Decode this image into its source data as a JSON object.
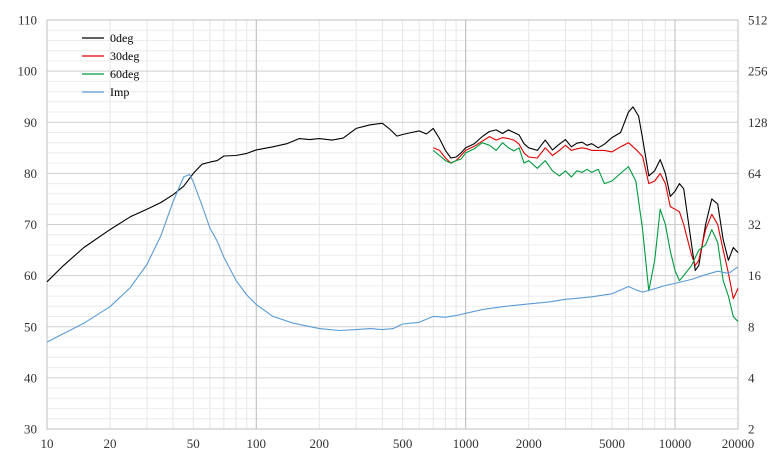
{
  "chart_data": {
    "type": "line",
    "title": "",
    "xlabel": "",
    "ylabel": "",
    "x_scale": "log",
    "xlim": [
      10,
      20000
    ],
    "ylim": [
      30,
      110
    ],
    "y2_scale": "log2",
    "y2lim": [
      2,
      512
    ],
    "grid": true,
    "legend_position": "top-left",
    "x_ticks": [
      10,
      20,
      50,
      100,
      200,
      500,
      1000,
      2000,
      5000,
      10000,
      20000
    ],
    "x_tick_labels": [
      "10",
      "20",
      "50",
      "100",
      "200",
      "500",
      "1000",
      "2000",
      "5000",
      "10000",
      "20000"
    ],
    "y_ticks": [
      30,
      40,
      50,
      60,
      70,
      80,
      90,
      100,
      110
    ],
    "y_tick_labels": [
      "30",
      "40",
      "50",
      "60",
      "70",
      "80",
      "90",
      "100",
      "110"
    ],
    "y2_ticks": [
      2,
      4,
      8,
      16,
      32,
      64,
      128,
      256,
      512
    ],
    "y2_tick_labels": [
      "2",
      "4",
      "8",
      "16",
      "32",
      "64",
      "128",
      "256",
      "512"
    ],
    "series": [
      {
        "name": "0deg",
        "color": "#000000",
        "axis": "left",
        "points": [
          [
            10,
            58.8
          ],
          [
            12,
            62
          ],
          [
            15,
            65.5
          ],
          [
            20,
            69
          ],
          [
            25,
            71.5
          ],
          [
            30,
            73
          ],
          [
            35,
            74.3
          ],
          [
            40,
            75.8
          ],
          [
            45,
            77.5
          ],
          [
            50,
            80
          ],
          [
            55,
            81.8
          ],
          [
            60,
            82.2
          ],
          [
            65,
            82.5
          ],
          [
            70,
            83.4
          ],
          [
            80,
            83.5
          ],
          [
            90,
            83.9
          ],
          [
            100,
            84.6
          ],
          [
            120,
            85.2
          ],
          [
            140,
            85.8
          ],
          [
            160,
            86.8
          ],
          [
            180,
            86.6
          ],
          [
            200,
            86.8
          ],
          [
            230,
            86.5
          ],
          [
            260,
            86.9
          ],
          [
            300,
            88.8
          ],
          [
            350,
            89.5
          ],
          [
            400,
            89.8
          ],
          [
            430,
            88.8
          ],
          [
            470,
            87.3
          ],
          [
            500,
            87.6
          ],
          [
            550,
            88
          ],
          [
            600,
            88.3
          ],
          [
            650,
            87.7
          ],
          [
            700,
            88.8
          ],
          [
            750,
            86.8
          ],
          [
            800,
            84.5
          ],
          [
            850,
            83
          ],
          [
            900,
            83.2
          ],
          [
            950,
            84
          ],
          [
            1000,
            85
          ],
          [
            1100,
            85.8
          ],
          [
            1200,
            87.2
          ],
          [
            1300,
            88.2
          ],
          [
            1400,
            88.5
          ],
          [
            1500,
            87.8
          ],
          [
            1600,
            88.5
          ],
          [
            1700,
            88
          ],
          [
            1800,
            87.5
          ],
          [
            1900,
            85.8
          ],
          [
            2000,
            85
          ],
          [
            2200,
            84.5
          ],
          [
            2400,
            86.5
          ],
          [
            2600,
            84.6
          ],
          [
            2800,
            85.7
          ],
          [
            3000,
            86.6
          ],
          [
            3200,
            85.2
          ],
          [
            3400,
            85.9
          ],
          [
            3600,
            86.1
          ],
          [
            3800,
            85.5
          ],
          [
            4000,
            85.8
          ],
          [
            4300,
            85
          ],
          [
            4600,
            85.7
          ],
          [
            5000,
            87
          ],
          [
            5500,
            88
          ],
          [
            6000,
            92
          ],
          [
            6300,
            93
          ],
          [
            6700,
            91.2
          ],
          [
            7000,
            86.8
          ],
          [
            7500,
            79.5
          ],
          [
            8000,
            80.5
          ],
          [
            8500,
            82.7
          ],
          [
            9000,
            80
          ],
          [
            9500,
            75.5
          ],
          [
            10000,
            76.5
          ],
          [
            10500,
            78
          ],
          [
            11000,
            77
          ],
          [
            12000,
            66
          ],
          [
            12500,
            61
          ],
          [
            13000,
            62
          ],
          [
            14000,
            70
          ],
          [
            15000,
            75
          ],
          [
            16000,
            74
          ],
          [
            17000,
            67
          ],
          [
            18000,
            63
          ],
          [
            19000,
            65.5
          ],
          [
            20000,
            64.5
          ]
        ]
      },
      {
        "name": "30deg",
        "color": "#e00000",
        "axis": "left",
        "points": [
          [
            700,
            85
          ],
          [
            750,
            84.5
          ],
          [
            800,
            83
          ],
          [
            850,
            82
          ],
          [
            900,
            82.5
          ],
          [
            950,
            83.5
          ],
          [
            1000,
            84.5
          ],
          [
            1100,
            85.3
          ],
          [
            1200,
            86.3
          ],
          [
            1300,
            87.2
          ],
          [
            1400,
            86.5
          ],
          [
            1500,
            87
          ],
          [
            1600,
            86.8
          ],
          [
            1700,
            86.5
          ],
          [
            1800,
            85.7
          ],
          [
            1900,
            84
          ],
          [
            2000,
            83.2
          ],
          [
            2200,
            83
          ],
          [
            2400,
            85
          ],
          [
            2600,
            83.5
          ],
          [
            2800,
            84.5
          ],
          [
            3000,
            85.5
          ],
          [
            3200,
            84.5
          ],
          [
            3400,
            84.8
          ],
          [
            3600,
            85
          ],
          [
            3800,
            84.8
          ],
          [
            4000,
            84.5
          ],
          [
            4300,
            84.5
          ],
          [
            4600,
            84.5
          ],
          [
            5000,
            84.2
          ],
          [
            5500,
            85.2
          ],
          [
            6000,
            86
          ],
          [
            6500,
            84.7
          ],
          [
            7000,
            83.3
          ],
          [
            7500,
            78
          ],
          [
            8000,
            78.5
          ],
          [
            8500,
            80
          ],
          [
            9000,
            78
          ],
          [
            9500,
            73.5
          ],
          [
            10000,
            73
          ],
          [
            10500,
            72.5
          ],
          [
            11000,
            70
          ],
          [
            12000,
            64
          ],
          [
            12500,
            62
          ],
          [
            13000,
            63
          ],
          [
            14000,
            69
          ],
          [
            15000,
            72
          ],
          [
            16000,
            70
          ],
          [
            17000,
            65
          ],
          [
            18000,
            60.5
          ],
          [
            19000,
            55.5
          ],
          [
            20000,
            57.5
          ]
        ]
      },
      {
        "name": "60deg",
        "color": "#009a3e",
        "axis": "left",
        "points": [
          [
            700,
            84.5
          ],
          [
            750,
            83.5
          ],
          [
            800,
            82.5
          ],
          [
            850,
            82
          ],
          [
            900,
            82.5
          ],
          [
            950,
            82.8
          ],
          [
            1000,
            84
          ],
          [
            1100,
            84.8
          ],
          [
            1200,
            86
          ],
          [
            1300,
            85.5
          ],
          [
            1400,
            84.5
          ],
          [
            1500,
            86
          ],
          [
            1600,
            85
          ],
          [
            1700,
            84.4
          ],
          [
            1800,
            85
          ],
          [
            1900,
            82
          ],
          [
            2000,
            82.5
          ],
          [
            2200,
            81
          ],
          [
            2400,
            82.5
          ],
          [
            2600,
            80.5
          ],
          [
            2800,
            79.5
          ],
          [
            3000,
            80.5
          ],
          [
            3200,
            79.3
          ],
          [
            3400,
            80.5
          ],
          [
            3600,
            80.2
          ],
          [
            3800,
            80.8
          ],
          [
            4000,
            80.2
          ],
          [
            4300,
            80.8
          ],
          [
            4600,
            78
          ],
          [
            5000,
            78.5
          ],
          [
            5500,
            80
          ],
          [
            6000,
            81.3
          ],
          [
            6500,
            78.5
          ],
          [
            7000,
            69
          ],
          [
            7500,
            57
          ],
          [
            8000,
            63
          ],
          [
            8500,
            73
          ],
          [
            9000,
            70
          ],
          [
            9500,
            64.8
          ],
          [
            10000,
            61
          ],
          [
            10500,
            59
          ],
          [
            11000,
            60
          ],
          [
            12000,
            62
          ],
          [
            13000,
            65
          ],
          [
            14000,
            66
          ],
          [
            15000,
            69
          ],
          [
            16000,
            66.5
          ],
          [
            17000,
            59
          ],
          [
            18000,
            56
          ],
          [
            19000,
            52
          ],
          [
            20000,
            51
          ]
        ]
      },
      {
        "name": "Imp",
        "color": "#5b9bd5",
        "axis": "right",
        "points": [
          [
            10,
            6.5
          ],
          [
            12,
            7.3
          ],
          [
            15,
            8.4
          ],
          [
            20,
            10.5
          ],
          [
            25,
            13.6
          ],
          [
            30,
            18.6
          ],
          [
            35,
            27.5
          ],
          [
            40,
            43.5
          ],
          [
            45,
            61
          ],
          [
            48,
            63
          ],
          [
            50,
            57
          ],
          [
            55,
            41.5
          ],
          [
            60,
            30.5
          ],
          [
            65,
            25.5
          ],
          [
            70,
            20.5
          ],
          [
            80,
            15
          ],
          [
            90,
            12.3
          ],
          [
            100,
            10.8
          ],
          [
            120,
            9.2
          ],
          [
            150,
            8.4
          ],
          [
            200,
            7.8
          ],
          [
            250,
            7.6
          ],
          [
            300,
            7.7
          ],
          [
            350,
            7.8
          ],
          [
            400,
            7.7
          ],
          [
            450,
            7.8
          ],
          [
            500,
            8.3
          ],
          [
            600,
            8.5
          ],
          [
            700,
            9.2
          ],
          [
            800,
            9.1
          ],
          [
            900,
            9.3
          ],
          [
            1000,
            9.6
          ],
          [
            1200,
            10.1
          ],
          [
            1500,
            10.5
          ],
          [
            2000,
            10.9
          ],
          [
            2500,
            11.2
          ],
          [
            3000,
            11.6
          ],
          [
            3500,
            11.8
          ],
          [
            4000,
            12
          ],
          [
            5000,
            12.5
          ],
          [
            6000,
            13.8
          ],
          [
            6500,
            13.2
          ],
          [
            7000,
            12.8
          ],
          [
            8000,
            13.4
          ],
          [
            9000,
            14
          ],
          [
            10000,
            14.4
          ],
          [
            12000,
            15.2
          ],
          [
            14000,
            16.2
          ],
          [
            16000,
            17
          ],
          [
            18000,
            16.5
          ],
          [
            20000,
            18
          ]
        ]
      }
    ]
  }
}
